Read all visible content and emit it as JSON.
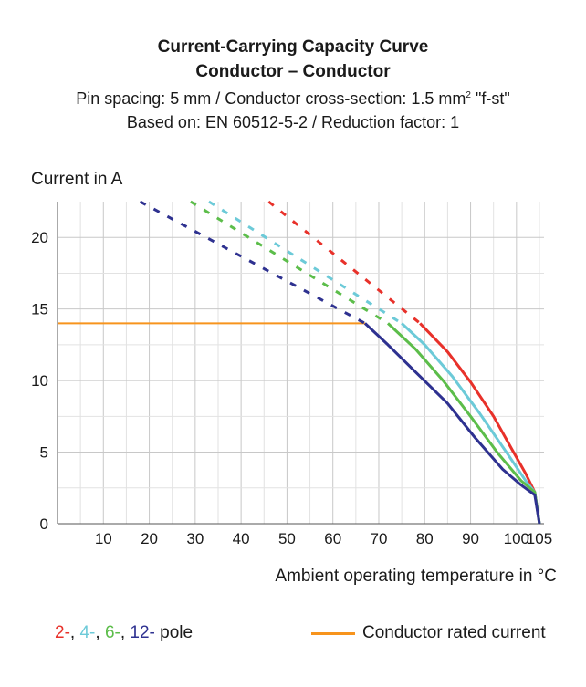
{
  "chart_data": {
    "type": "line",
    "title": "Current-Carrying Capacity Curve",
    "subtitle": "Conductor – Conductor",
    "info_line1_pre": "Pin spacing: 5 mm / Conductor cross-section: 1.5 mm",
    "info_line1_sup": "2",
    "info_line1_post": " \"f-st\"",
    "info_line2": "Based on: EN 60512-5-2 / Reduction factor: 1",
    "ylabel": "Current in A",
    "xlabel": "Ambient operating temperature in °C",
    "xlim": [
      0,
      106
    ],
    "ylim": [
      0,
      22.5
    ],
    "x_ticks": [
      10,
      20,
      30,
      40,
      50,
      60,
      70,
      80,
      90,
      100,
      105
    ],
    "y_ticks": [
      0,
      5,
      10,
      15,
      20
    ],
    "grid": true,
    "rated_current": {
      "name": "Conductor rated current",
      "value": 14,
      "x_range": [
        0,
        67
      ],
      "color": "#f7941d"
    },
    "series": [
      {
        "name": "2-",
        "color": "#e8312a",
        "dashed": [
          [
            46,
            22.5
          ],
          [
            79,
            14
          ]
        ],
        "solid": [
          [
            79,
            14
          ],
          [
            85,
            12
          ],
          [
            90,
            9.9
          ],
          [
            95,
            7.5
          ],
          [
            99,
            5.2
          ],
          [
            102,
            3.5
          ],
          [
            104,
            2.2
          ],
          [
            105,
            0
          ]
        ]
      },
      {
        "name": "4-",
        "color": "#6ccad8",
        "dashed": [
          [
            33,
            22.5
          ],
          [
            75,
            14
          ]
        ],
        "solid": [
          [
            75,
            14
          ],
          [
            80,
            12.5
          ],
          [
            86,
            10.3
          ],
          [
            92,
            7.7
          ],
          [
            98,
            4.9
          ],
          [
            102,
            3.0
          ],
          [
            104,
            2.2
          ],
          [
            105,
            0
          ]
        ]
      },
      {
        "name": "6-",
        "color": "#5cbd4a",
        "dashed": [
          [
            29,
            22.5
          ],
          [
            72,
            14
          ]
        ],
        "solid": [
          [
            72,
            14
          ],
          [
            78,
            12.2
          ],
          [
            84,
            10.0
          ],
          [
            90,
            7.5
          ],
          [
            96,
            4.9
          ],
          [
            101,
            3.0
          ],
          [
            104,
            2.2
          ],
          [
            105,
            0
          ]
        ]
      },
      {
        "name": "12-",
        "color": "#2e3190",
        "dashed": [
          [
            18,
            22.5
          ],
          [
            67,
            14
          ]
        ],
        "solid": [
          [
            67,
            14
          ],
          [
            72,
            12.5
          ],
          [
            78,
            10.6
          ],
          [
            85,
            8.4
          ],
          [
            91,
            6.0
          ],
          [
            97,
            3.8
          ],
          [
            101,
            2.7
          ],
          [
            104,
            2.0
          ],
          [
            105,
            0
          ]
        ]
      }
    ],
    "legend": {
      "poles": [
        {
          "text": "2-",
          "color": "#e8312a"
        },
        {
          "text": ", ",
          "color": "#1a1a1a"
        },
        {
          "text": "4-",
          "color": "#6ccad8"
        },
        {
          "text": ", ",
          "color": "#1a1a1a"
        },
        {
          "text": "6-",
          "color": "#5cbd4a"
        },
        {
          "text": ", ",
          "color": "#1a1a1a"
        },
        {
          "text": "12-",
          "color": "#2e3190"
        },
        {
          "text": " pole",
          "color": "#1a1a1a"
        }
      ],
      "rated_label": "Conductor rated current"
    }
  }
}
